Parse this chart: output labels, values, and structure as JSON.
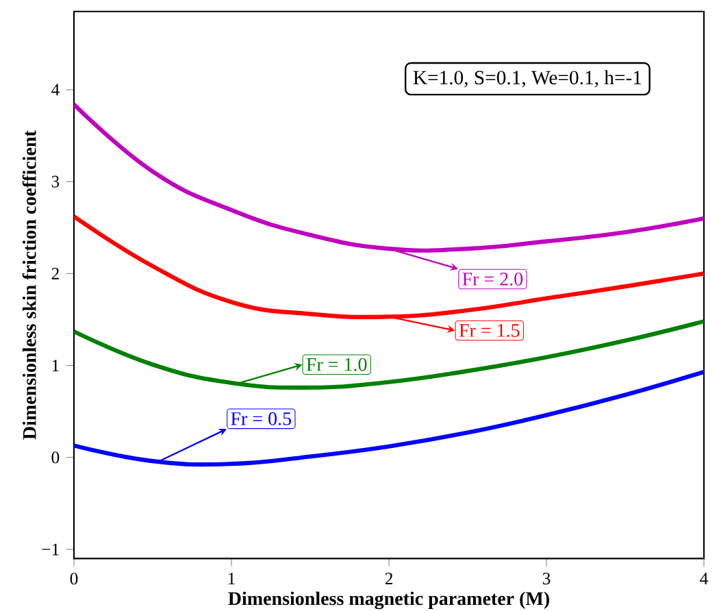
{
  "chart_data": {
    "type": "line",
    "xlabel": "Dimensionless magnetic parameter (M)",
    "ylabel": "Dimensionless skin friction coefficient",
    "x": [
      0,
      0.5,
      1,
      1.5,
      2,
      2.5,
      3,
      3.5,
      4
    ],
    "series": [
      {
        "color": "#0000ff",
        "values": [
          0.13,
          -0.04,
          -0.07,
          0.01,
          0.12,
          0.27,
          0.46,
          0.68,
          0.93
        ]
      },
      {
        "color": "#008000",
        "values": [
          1.37,
          1.01,
          0.81,
          0.76,
          0.82,
          0.94,
          1.09,
          1.27,
          1.48
        ]
      },
      {
        "color": "#ff0000",
        "values": [
          2.62,
          2.08,
          1.69,
          1.56,
          1.53,
          1.6,
          1.73,
          1.86,
          2.0
        ]
      },
      {
        "color": "#bf00bf",
        "values": [
          3.84,
          3.11,
          2.69,
          2.42,
          2.27,
          2.27,
          2.35,
          2.45,
          2.6
        ]
      }
    ],
    "xlim": [
      0,
      4
    ],
    "ylim": [
      -1.1,
      4.85
    ],
    "xticks": [
      0,
      1,
      2,
      3,
      4
    ],
    "yticks": [
      {
        "value": -1,
        "label": "−1"
      },
      0,
      1,
      2,
      3,
      4
    ],
    "annotations": [
      {
        "text": "Fr = 0.5",
        "x": 0.53,
        "y": -0.05
      },
      {
        "text": "Fr = 1.0",
        "x": 1.03,
        "y": 0.8
      },
      {
        "text": "Fr = 1.5",
        "x": 2.0,
        "y": 1.53
      },
      {
        "text": "Fr = 2.0",
        "x": 2.04,
        "y": 2.25
      },
      "K=1.0, S=0.1, We=0.1, h=-1"
    ]
  }
}
